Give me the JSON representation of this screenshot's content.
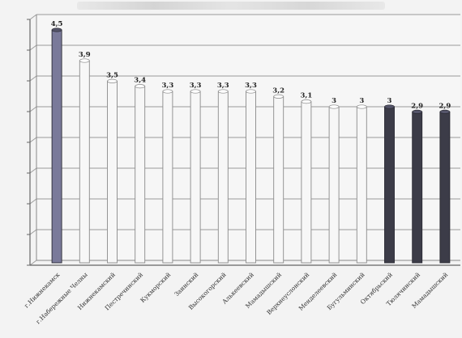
{
  "chart_data": {
    "type": "bar",
    "title": "",
    "xlabel": "",
    "ylabel": "",
    "ylim": [
      0,
      4.8
    ],
    "grid": true,
    "legend": "none",
    "categories": [
      "г.Нижнекамск",
      "г.Набережные Челны",
      "Нижнекамский",
      "Пестречинский",
      "Кукморский",
      "Заинский",
      "Высокогорский",
      "Алькеевский",
      "Мамадышский",
      "Верхнеуслонский",
      "Менделеевский",
      "Бугульминский",
      "Октябрьский",
      "Тюлячинский",
      "Мамадышский"
    ],
    "series": [
      {
        "values": [
          4.5,
          3.9,
          3.5,
          3.4,
          3.3,
          3.3,
          3.3,
          3.3,
          3.2,
          3.1,
          3,
          3,
          3,
          2.9,
          2.9
        ],
        "labels": [
          "4,5",
          "3,9",
          "3,5",
          "3,4",
          "3,3",
          "3,3",
          "3,3",
          "3,3",
          "3,2",
          "3,1",
          "3",
          "3",
          "3",
          "2,9",
          "2,9"
        ],
        "colors": [
          "#7a7a9a",
          "#f7f7f7",
          "#f7f7f7",
          "#f7f7f7",
          "#f7f7f7",
          "#f7f7f7",
          "#f7f7f7",
          "#f7f7f7",
          "#f7f7f7",
          "#f7f7f7",
          "#f7f7f7",
          "#f7f7f7",
          "#3c3c48",
          "#3c3c48",
          "#3c3c48"
        ]
      }
    ]
  }
}
